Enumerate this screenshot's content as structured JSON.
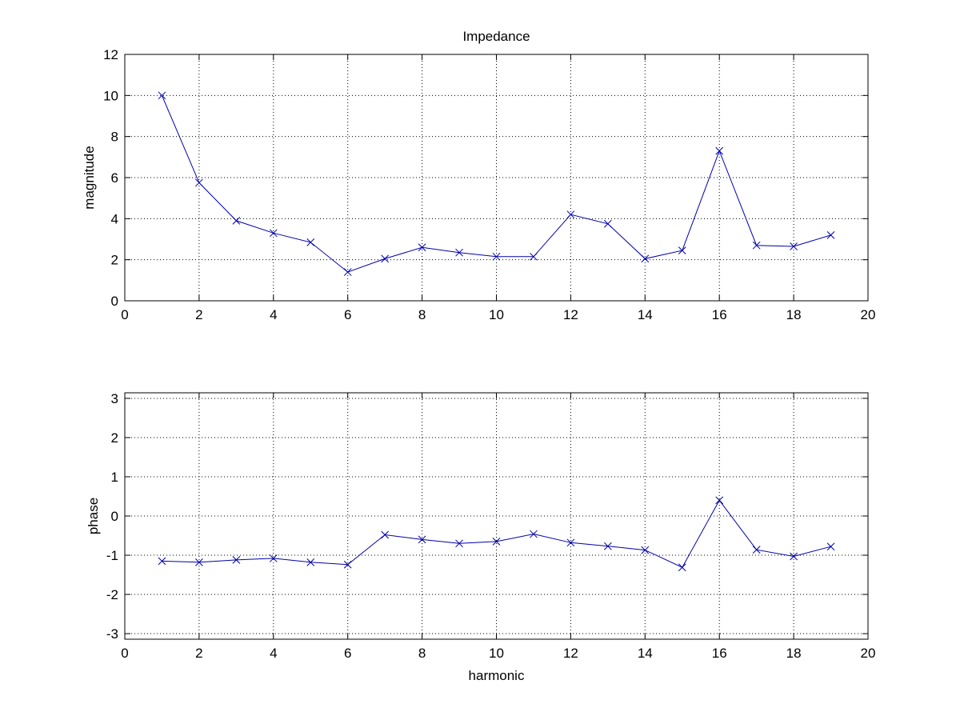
{
  "chart_data": [
    {
      "type": "line",
      "title": "Impedance",
      "xlabel": "",
      "ylabel": "magnitude",
      "xlim": [
        0,
        20
      ],
      "ylim": [
        0,
        12
      ],
      "xticks": [
        0,
        2,
        4,
        6,
        8,
        10,
        12,
        14,
        16,
        18,
        20
      ],
      "yticks": [
        0,
        2,
        4,
        6,
        8,
        10,
        12
      ],
      "grid": true,
      "marker": "x",
      "color": "#0000aa",
      "x": [
        1,
        2,
        3,
        4,
        5,
        6,
        7,
        8,
        9,
        10,
        11,
        12,
        13,
        14,
        15,
        16,
        17,
        18,
        19
      ],
      "y": [
        10.0,
        5.75,
        3.9,
        3.3,
        2.85,
        1.4,
        2.05,
        2.6,
        2.35,
        2.15,
        2.15,
        4.2,
        3.75,
        2.05,
        2.45,
        7.3,
        2.7,
        2.65,
        3.2
      ]
    },
    {
      "type": "line",
      "title": "",
      "xlabel": "harmonic",
      "ylabel": "phase",
      "xlim": [
        0,
        20
      ],
      "ylim": [
        -3.14159,
        3.14159
      ],
      "xticks": [
        0,
        2,
        4,
        6,
        8,
        10,
        12,
        14,
        16,
        18,
        20
      ],
      "yticks": [
        -3,
        -2,
        -1,
        0,
        1,
        2,
        3
      ],
      "grid": true,
      "marker": "x",
      "color": "#0000aa",
      "x": [
        1,
        2,
        3,
        4,
        5,
        6,
        7,
        8,
        9,
        10,
        11,
        12,
        13,
        14,
        15,
        16,
        17,
        18,
        19
      ],
      "y": [
        -1.15,
        -1.18,
        -1.12,
        -1.08,
        -1.18,
        -1.24,
        -0.48,
        -0.6,
        -0.7,
        -0.65,
        -0.46,
        -0.68,
        -0.77,
        -0.87,
        -1.31,
        0.4,
        -0.86,
        -1.03,
        -0.78
      ]
    }
  ]
}
